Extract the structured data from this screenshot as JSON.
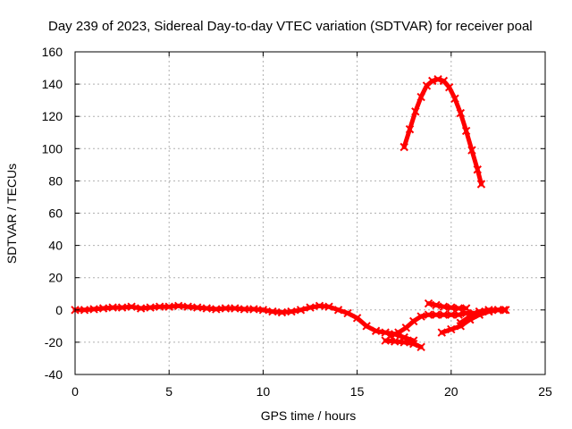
{
  "chart_data": {
    "type": "scatter",
    "title": "Day 239 of 2023, Sidereal Day-to-day VTEC variation (SDTVAR) for receiver poal",
    "xlabel": "GPS time / hours",
    "ylabel": "SDTVAR / TECUs",
    "xlim": [
      0,
      25
    ],
    "ylim": [
      -40,
      160
    ],
    "xticks": [
      "0",
      "5",
      "10",
      "15",
      "20",
      "25"
    ],
    "yticks": [
      "-40",
      "-20",
      "0",
      "20",
      "40",
      "60",
      "80",
      "100",
      "120",
      "140",
      "160"
    ],
    "grid": true,
    "series_color": "#ff0000",
    "series": [
      {
        "name": "main-track",
        "x": [
          0.0,
          0.5,
          1.0,
          1.5,
          2.0,
          2.5,
          3.0,
          3.5,
          4.0,
          4.5,
          5.0,
          5.5,
          6.0,
          6.5,
          7.0,
          7.5,
          8.0,
          8.5,
          9.0,
          9.5,
          10.0,
          10.5,
          11.0,
          11.5,
          12.0,
          12.5,
          13.0,
          13.5,
          14.0,
          14.5,
          15.0,
          15.5,
          16.0,
          16.5,
          17.0,
          17.5,
          18.0
        ],
        "y": [
          0,
          0,
          0.5,
          1,
          1.5,
          1.5,
          2,
          1,
          1.5,
          2,
          2,
          2.5,
          2,
          1.5,
          1,
          0.5,
          1,
          1,
          0.5,
          0.5,
          0,
          -1,
          -1.5,
          -1,
          0,
          1.5,
          2.5,
          2,
          0,
          -2,
          -5,
          -10,
          -13,
          -14,
          -15,
          -17,
          -19
        ]
      },
      {
        "name": "late-segment-a",
        "x": [
          16.8,
          17.2,
          17.6,
          18.0,
          18.4,
          18.8,
          19.2,
          19.6,
          20.0,
          20.4,
          20.8,
          21.2
        ],
        "y": [
          -16,
          -14,
          -11,
          -7,
          -4,
          -3,
          -3,
          -3,
          -3,
          -3,
          -2,
          -2
        ]
      },
      {
        "name": "late-segment-b",
        "x": [
          16.5,
          17.0,
          17.5,
          18.0,
          18.4
        ],
        "y": [
          -19,
          -19.5,
          -20,
          -21,
          -23
        ]
      },
      {
        "name": "late-segment-c",
        "x": [
          19.5,
          20.0,
          20.5,
          21.0,
          21.5,
          22.0,
          22.5,
          22.8
        ],
        "y": [
          -14,
          -12,
          -10,
          -6,
          -3,
          -1,
          0,
          0
        ]
      },
      {
        "name": "late-segment-d",
        "x": [
          18.8,
          19.2,
          19.6,
          20.0,
          20.4,
          20.8
        ],
        "y": [
          4,
          3,
          2,
          1.5,
          1,
          1
        ]
      },
      {
        "name": "late-segment-e",
        "x": [
          20.5,
          21.0,
          21.5,
          22.0,
          22.5,
          22.9
        ],
        "y": [
          -8,
          -4,
          -1,
          0,
          0,
          0
        ]
      },
      {
        "name": "high-arc",
        "x": [
          17.5,
          17.8,
          18.1,
          18.4,
          18.7,
          19.0,
          19.3,
          19.6,
          19.9,
          20.2,
          20.5,
          20.8,
          21.1,
          21.4,
          21.6
        ],
        "y": [
          101,
          112,
          123,
          132,
          139,
          142,
          143,
          142,
          138,
          131,
          122,
          111,
          99,
          87,
          78
        ]
      }
    ]
  }
}
